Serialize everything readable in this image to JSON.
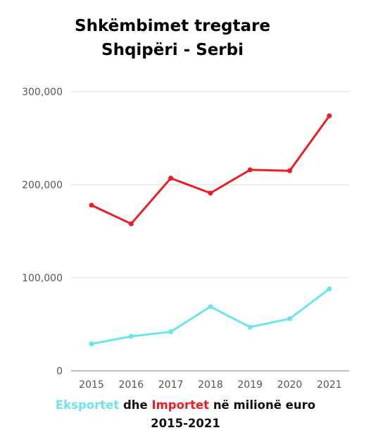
{
  "title": {
    "line1": "Shkëmbimet tregtare",
    "line2": "Shqipëri - Serbi"
  },
  "caption": {
    "exports_word": "Eksportet",
    "dhe": "dhe",
    "imports_word": "Importet",
    "rest": "në milionë euro",
    "line2": "2015-2021"
  },
  "colors": {
    "exports": "#6ee3e8",
    "imports": "#ee1c25",
    "grid": "#d9d9d9",
    "axis": "#9a9a9a"
  },
  "chart_data": {
    "type": "line",
    "categories": [
      "2015",
      "2016",
      "2017",
      "2018",
      "2019",
      "2020",
      "2021"
    ],
    "series": [
      {
        "key": "imports",
        "values": [
          178000,
          158000,
          207000,
          191000,
          216000,
          215000,
          274000
        ]
      },
      {
        "key": "exports",
        "values": [
          29000,
          37000,
          42000,
          69000,
          47000,
          56000,
          88000
        ]
      }
    ],
    "yticks": [
      "0",
      "100,000",
      "200,000",
      "300,000"
    ],
    "ytick_values": [
      0,
      100000,
      200000,
      300000
    ],
    "ylim": [
      0,
      300000
    ],
    "grid": true,
    "legend": "none"
  }
}
